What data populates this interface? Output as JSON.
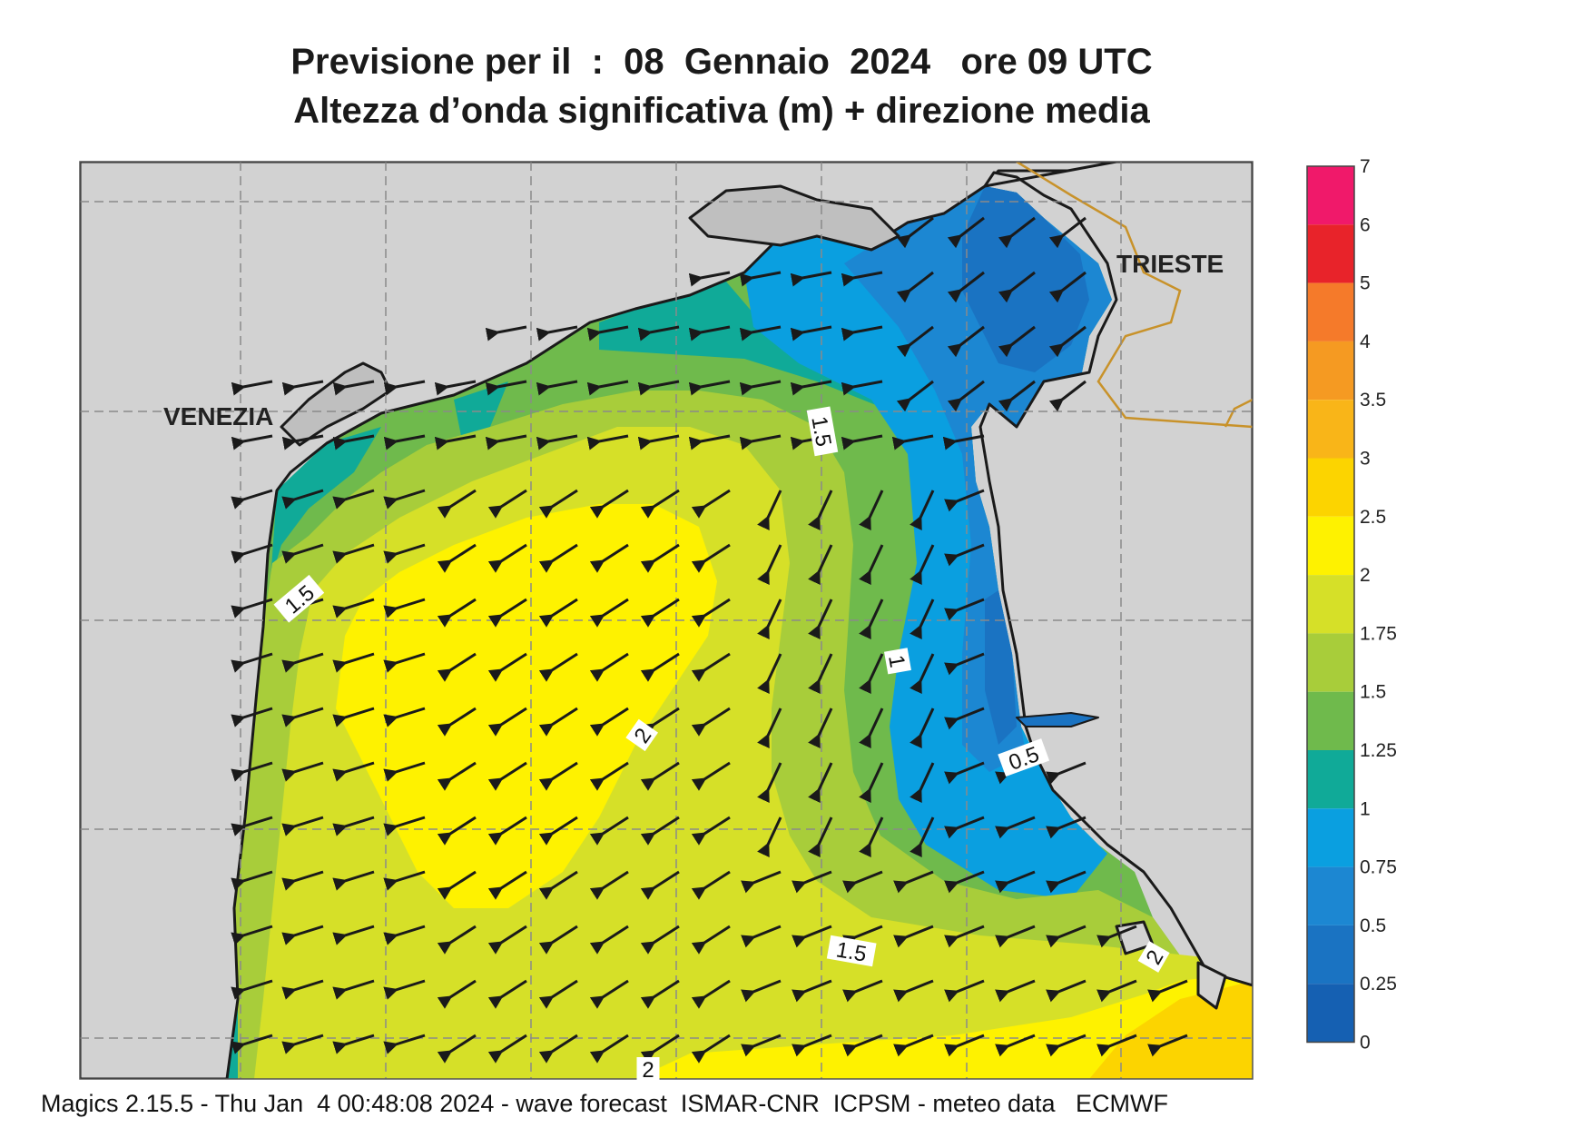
{
  "title": {
    "line1": "Previsione per il  :  08  Gennaio  2024   ore 09 UTC",
    "line2": "Altezza d’onda significativa (m) + direzione media"
  },
  "cities": {
    "venezia": "VENEZIA",
    "trieste": "TRIESTE"
  },
  "contour_labels": [
    "1.5",
    "1.5",
    "1",
    "0.5",
    "2",
    "1.5",
    "2",
    "2"
  ],
  "colorbar": {
    "ticks": [
      "7",
      "6",
      "5",
      "4",
      "3.5",
      "3",
      "2.5",
      "2",
      "1.75",
      "1.5",
      "1.25",
      "1",
      "0.75",
      "0.5",
      "0.25",
      "0"
    ],
    "colors": [
      "#f0196a",
      "#e8232a",
      "#f57a2a",
      "#f59a22",
      "#f9b518",
      "#fcd400",
      "#fef200",
      "#d6e028",
      "#a8cd3a",
      "#6fba4c",
      "#10aa98",
      "#0a9fe0",
      "#1c87d2",
      "#1a73c2",
      "#1560b2"
    ]
  },
  "colors": {
    "land": "#d2d2d2",
    "coast": "#1a1a1a",
    "border": "#c8922a"
  },
  "footer": "Magics 2.15.5 - Thu Jan  4 00:48:08 2024 - wave forecast  ISMAR-CNR  ICPSM - meteo data   ECMWF"
}
